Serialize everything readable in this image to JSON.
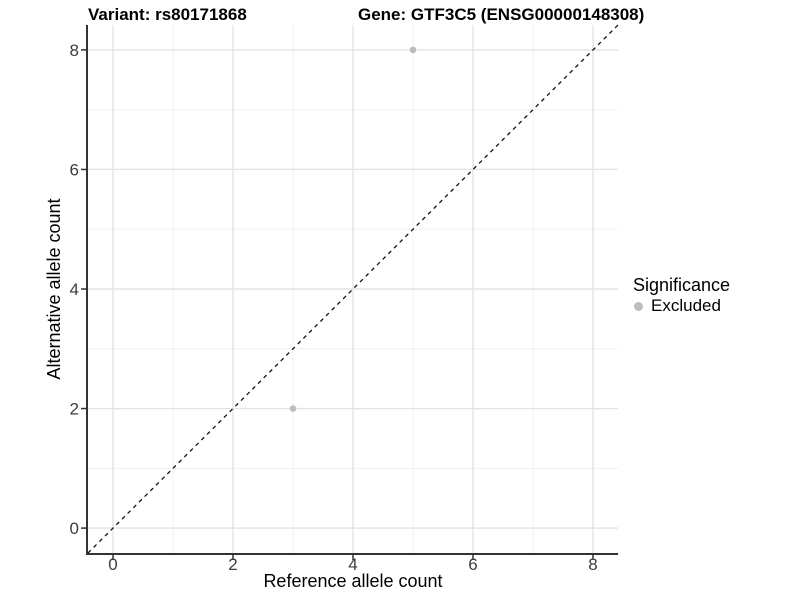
{
  "chart_data": {
    "type": "scatter",
    "title_left": "Variant: rs80171868",
    "title_right": "Gene: GTF3C5 (ENSG00000148308)",
    "xlabel": "Reference allele count",
    "ylabel": "Alternative allele count",
    "xlim": [
      -0.4167,
      8.4167
    ],
    "ylim": [
      -0.4167,
      8.4167
    ],
    "xticks": [
      0,
      2,
      4,
      6,
      8
    ],
    "yticks": [
      0,
      2,
      4,
      6,
      8
    ],
    "x_minor_ticks": [
      1,
      3,
      5,
      7
    ],
    "y_minor_ticks": [
      1,
      3,
      5,
      7
    ],
    "grid": true,
    "background": "#ffffff",
    "points": [
      {
        "x": 3,
        "y": 2,
        "significance": "Excluded"
      },
      {
        "x": 5,
        "y": 8,
        "significance": "Excluded"
      }
    ],
    "point_radius_px": 3.3,
    "reference_line": {
      "type": "identity",
      "style": "dashed",
      "slope": 1,
      "intercept": 0
    },
    "legend": {
      "position": "right",
      "title": "Significance",
      "items": [
        {
          "label": "Excluded",
          "color": "#bdbdbd"
        }
      ]
    },
    "colors": {
      "point": "#bdbdbd",
      "grid_major": "#e3e3e3",
      "grid_minor": "#f0f0f0",
      "axis_line": "#333333",
      "tick_mark": "#333333",
      "tick_label": "#3d3d3d",
      "identity_line": "#111111",
      "title": "#000000"
    }
  }
}
